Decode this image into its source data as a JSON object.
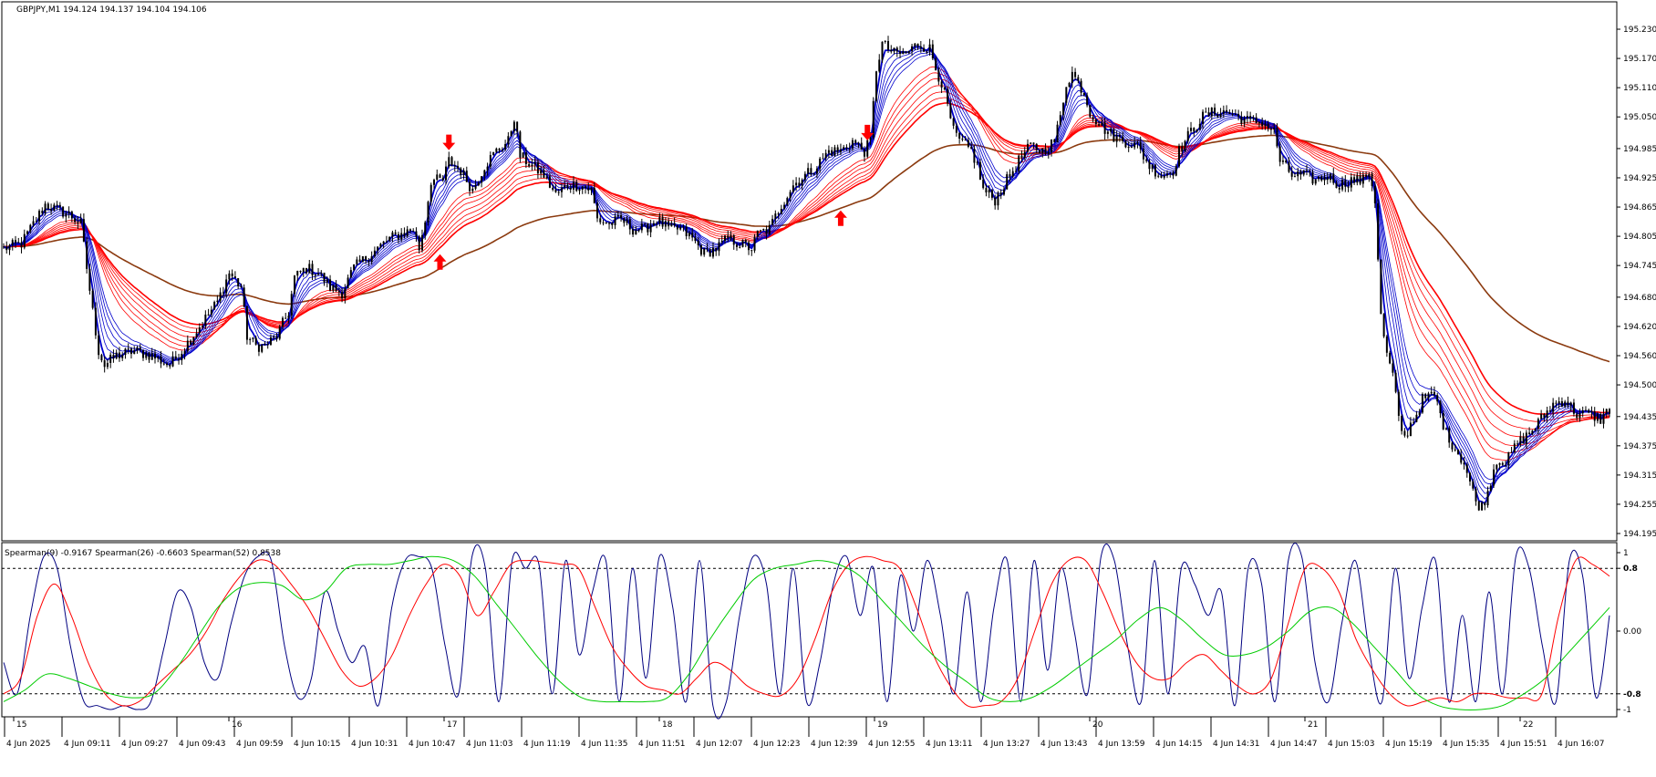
{
  "header": {
    "title": "GBPJPY,M1  194.124 194.137 194.104 194.106"
  },
  "indicator_header": {
    "text": "Spearman(9) -0.9167  Spearman(26) -0.6603  Spearman(52) 0.8538"
  },
  "colors": {
    "candle": "#000000",
    "fast_emas": "#0000cc",
    "slow_emas": "#ff0000",
    "long_ma": "#8b3a0f",
    "spearman9": "#000080",
    "spearman26": "#ff0000",
    "spearman52": "#00cc00",
    "arrow": "#ff0000"
  },
  "chart_data": [
    {
      "type": "candlestick",
      "symbol": "GBPJPY",
      "timeframe": "M1",
      "ylim": [
        194.195,
        195.26
      ],
      "y_ticks": [
        "195.230",
        "195.170",
        "195.110",
        "195.050",
        "194.985",
        "194.925",
        "194.865",
        "194.805",
        "194.745",
        "194.680",
        "194.620",
        "194.560",
        "194.500",
        "194.435",
        "194.375",
        "194.315",
        "194.255",
        "194.195"
      ],
      "x_grid_labels": [
        "15",
        "16",
        "17",
        "18",
        "19",
        "20",
        "21",
        "22"
      ],
      "x_time_labels": [
        "4 Jun 2025",
        "4 Jun 09:11",
        "4 Jun 09:27",
        "4 Jun 09:43",
        "4 Jun 09:59",
        "4 Jun 10:15",
        "4 Jun 10:31",
        "4 Jun 10:47",
        "4 Jun 11:03",
        "4 Jun 11:19",
        "4 Jun 11:35",
        "4 Jun 11:51",
        "4 Jun 12:07",
        "4 Jun 12:23",
        "4 Jun 12:39",
        "4 Jun 12:55",
        "4 Jun 13:11",
        "4 Jun 13:27",
        "4 Jun 13:43",
        "4 Jun 13:59",
        "4 Jun 14:15",
        "4 Jun 14:31",
        "4 Jun 14:47",
        "4 Jun 15:03",
        "4 Jun 15:19",
        "4 Jun 15:35",
        "4 Jun 15:51",
        "4 Jun 16:07"
      ],
      "price_path": [
        [
          0,
          194.78
        ],
        [
          6,
          194.79
        ],
        [
          10,
          194.83
        ],
        [
          14,
          194.87
        ],
        [
          18,
          194.86
        ],
        [
          22,
          194.85
        ],
        [
          26,
          194.83
        ],
        [
          28,
          194.74
        ],
        [
          30,
          194.65
        ],
        [
          32,
          194.57
        ],
        [
          34,
          194.54
        ],
        [
          38,
          194.56
        ],
        [
          44,
          194.57
        ],
        [
          50,
          194.56
        ],
        [
          56,
          194.54
        ],
        [
          60,
          194.57
        ],
        [
          66,
          194.62
        ],
        [
          72,
          194.67
        ],
        [
          76,
          194.73
        ],
        [
          80,
          194.7
        ],
        [
          82,
          194.6
        ],
        [
          85,
          194.58
        ],
        [
          88,
          194.58
        ],
        [
          92,
          194.6
        ],
        [
          96,
          194.65
        ],
        [
          98,
          194.72
        ],
        [
          102,
          194.74
        ],
        [
          106,
          194.73
        ],
        [
          110,
          194.7
        ],
        [
          114,
          194.69
        ],
        [
          118,
          194.74
        ],
        [
          122,
          194.76
        ],
        [
          126,
          194.78
        ],
        [
          130,
          194.8
        ],
        [
          134,
          194.81
        ],
        [
          138,
          194.82
        ],
        [
          140,
          194.78
        ],
        [
          142,
          194.84
        ],
        [
          144,
          194.92
        ],
        [
          148,
          194.92
        ],
        [
          150,
          194.96
        ],
        [
          154,
          194.94
        ],
        [
          158,
          194.9
        ],
        [
          162,
          194.95
        ],
        [
          166,
          194.98
        ],
        [
          170,
          195.0
        ],
        [
          172,
          195.05
        ],
        [
          174,
          194.97
        ],
        [
          178,
          194.95
        ],
        [
          182,
          194.93
        ],
        [
          186,
          194.89
        ],
        [
          190,
          194.91
        ],
        [
          194,
          194.91
        ],
        [
          198,
          194.9
        ],
        [
          200,
          194.84
        ],
        [
          204,
          194.83
        ],
        [
          208,
          194.84
        ],
        [
          212,
          194.82
        ],
        [
          216,
          194.82
        ],
        [
          220,
          194.84
        ],
        [
          224,
          194.82
        ],
        [
          228,
          194.82
        ],
        [
          232,
          194.8
        ],
        [
          236,
          194.77
        ],
        [
          240,
          194.78
        ],
        [
          244,
          194.8
        ],
        [
          248,
          194.79
        ],
        [
          252,
          194.78
        ],
        [
          254,
          194.81
        ],
        [
          258,
          194.82
        ],
        [
          262,
          194.87
        ],
        [
          266,
          194.91
        ],
        [
          270,
          194.93
        ],
        [
          274,
          194.95
        ],
        [
          278,
          194.98
        ],
        [
          282,
          194.98
        ],
        [
          286,
          195.0
        ],
        [
          290,
          194.98
        ],
        [
          292,
          195.0
        ],
        [
          294,
          195.15
        ],
        [
          296,
          195.2
        ],
        [
          300,
          195.18
        ],
        [
          304,
          195.18
        ],
        [
          308,
          195.2
        ],
        [
          312,
          195.19
        ],
        [
          314,
          195.15
        ],
        [
          316,
          195.12
        ],
        [
          320,
          195.02
        ],
        [
          322,
          195.0
        ],
        [
          326,
          194.98
        ],
        [
          328,
          194.95
        ],
        [
          330,
          194.9
        ],
        [
          334,
          194.88
        ],
        [
          338,
          194.92
        ],
        [
          342,
          194.96
        ],
        [
          346,
          194.99
        ],
        [
          350,
          194.98
        ],
        [
          354,
          195.0
        ],
        [
          356,
          195.05
        ],
        [
          358,
          195.12
        ],
        [
          360,
          195.14
        ],
        [
          364,
          195.1
        ],
        [
          366,
          195.06
        ],
        [
          370,
          195.03
        ],
        [
          374,
          195.01
        ],
        [
          378,
          195.0
        ],
        [
          382,
          194.99
        ],
        [
          386,
          194.95
        ],
        [
          390,
          194.93
        ],
        [
          394,
          194.94
        ],
        [
          396,
          194.98
        ],
        [
          400,
          195.02
        ],
        [
          404,
          195.05
        ],
        [
          408,
          195.06
        ],
        [
          412,
          195.06
        ],
        [
          416,
          195.05
        ],
        [
          420,
          195.04
        ],
        [
          424,
          195.04
        ],
        [
          428,
          195.02
        ],
        [
          430,
          194.96
        ],
        [
          434,
          194.93
        ],
        [
          438,
          194.93
        ],
        [
          442,
          194.92
        ],
        [
          446,
          194.93
        ],
        [
          450,
          194.91
        ],
        [
          454,
          194.92
        ],
        [
          458,
          194.92
        ],
        [
          460,
          194.94
        ],
        [
          462,
          194.88
        ],
        [
          464,
          194.64
        ],
        [
          466,
          194.56
        ],
        [
          468,
          194.52
        ],
        [
          470,
          194.43
        ],
        [
          472,
          194.39
        ],
        [
          474,
          194.42
        ],
        [
          476,
          194.44
        ],
        [
          478,
          194.47
        ],
        [
          482,
          194.48
        ],
        [
          484,
          194.44
        ],
        [
          486,
          194.4
        ],
        [
          490,
          194.36
        ],
        [
          492,
          194.34
        ],
        [
          494,
          194.3
        ],
        [
          496,
          194.26
        ],
        [
          498,
          194.25
        ],
        [
          500,
          194.28
        ],
        [
          502,
          194.33
        ],
        [
          504,
          194.35
        ],
        [
          506,
          194.34
        ],
        [
          510,
          194.38
        ],
        [
          514,
          194.4
        ],
        [
          518,
          194.43
        ],
        [
          522,
          194.46
        ],
        [
          526,
          194.47
        ],
        [
          530,
          194.44
        ],
        [
          534,
          194.44
        ],
        [
          538,
          194.43
        ],
        [
          541,
          194.45
        ]
      ],
      "arrows": [
        {
          "dir": "down",
          "t": 150,
          "price": 194.98
        },
        {
          "dir": "up",
          "t": 147,
          "price": 194.77
        },
        {
          "dir": "down",
          "t": 291,
          "price": 195.0
        },
        {
          "dir": "up",
          "t": 282,
          "price": 194.86
        }
      ]
    },
    {
      "type": "line",
      "name": "Spearman",
      "ylim": [
        -1,
        1
      ],
      "y_ticks": [
        "1",
        "0.8",
        "0.00",
        "-0.8",
        "-1"
      ],
      "levels": [
        0.8,
        -0.8
      ],
      "series": [
        {
          "name": "Spearman(9)",
          "key": "spearman9",
          "values": [
            -0.4,
            -0.8,
            0.2,
            0.95,
            0.8,
            -0.2,
            -0.9,
            -0.95,
            -1.0,
            -0.95,
            -1.0,
            -0.9,
            -0.2,
            0.5,
            0.3,
            -0.4,
            -0.6,
            0.1,
            0.7,
            0.95,
            0.9,
            -0.2,
            -0.85,
            -0.6,
            0.5,
            0.0,
            -0.4,
            -0.2,
            -0.95,
            0.3,
            0.9,
            0.95,
            0.8,
            -0.2,
            -0.8,
            0.95,
            0.8,
            -0.9,
            0.9,
            0.8,
            0.85,
            -0.8,
            0.9,
            -0.3,
            0.5,
            0.9,
            -0.9,
            0.8,
            -0.6,
            0.95,
            0.3,
            -0.9,
            0.9,
            -0.95,
            -0.9,
            0.2,
            0.95,
            0.6,
            -0.8,
            0.8,
            -0.9,
            -0.4,
            0.6,
            0.95,
            0.2,
            0.8,
            -0.9,
            0.7,
            0.0,
            0.9,
            0.2,
            -0.8,
            0.5,
            -0.9,
            0.3,
            0.9,
            -0.9,
            0.9,
            -0.5,
            0.8,
            0.0,
            -0.8,
            0.95,
            0.9,
            -0.2,
            -0.9,
            0.9,
            -0.8,
            0.8,
            0.6,
            0.2,
            0.5,
            -0.95,
            0.8,
            0.6,
            -0.9,
            0.9,
            0.95,
            -0.4,
            -0.9,
            0.1,
            0.9,
            -0.2,
            -0.9,
            0.8,
            -0.6,
            0.3,
            0.9,
            -0.9,
            0.2,
            -0.9,
            0.5,
            -0.8,
            0.95,
            0.8,
            -0.2,
            -0.9,
            0.9,
            0.7,
            -0.85,
            0.2
          ]
        },
        {
          "name": "Spearman(26)",
          "key": "spearman26",
          "values": [
            -0.8,
            -0.6,
            0.2,
            0.6,
            0.2,
            -0.4,
            -0.8,
            -0.95,
            -0.9,
            -0.7,
            -0.5,
            -0.3,
            0.0,
            0.4,
            0.7,
            0.9,
            0.85,
            0.6,
            0.3,
            -0.1,
            -0.5,
            -0.7,
            -0.6,
            -0.3,
            0.2,
            0.6,
            0.85,
            0.7,
            0.2,
            0.5,
            0.85,
            0.9,
            0.88,
            0.85,
            0.8,
            0.3,
            -0.2,
            -0.5,
            -0.7,
            -0.75,
            -0.8,
            -0.6,
            -0.4,
            -0.5,
            -0.7,
            -0.8,
            -0.82,
            -0.6,
            -0.1,
            0.5,
            0.85,
            0.95,
            0.9,
            0.8,
            0.3,
            -0.3,
            -0.7,
            -0.95,
            -0.95,
            -0.9,
            -0.6,
            0.0,
            0.6,
            0.9,
            0.9,
            0.5,
            0.0,
            -0.4,
            -0.6,
            -0.6,
            -0.4,
            -0.3,
            -0.5,
            -0.7,
            -0.8,
            -0.6,
            0.1,
            0.8,
            0.8,
            0.5,
            -0.1,
            -0.5,
            -0.8,
            -0.95,
            -0.9,
            -0.85,
            -0.9,
            -0.8,
            -0.8,
            -0.85,
            -0.85,
            -0.8,
            0.2,
            0.9,
            0.85,
            0.7
          ]
        },
        {
          "name": "Spearman(52)",
          "key": "spearman52",
          "values": [
            -0.9,
            -0.75,
            -0.55,
            -0.6,
            -0.7,
            -0.8,
            -0.85,
            -0.8,
            -0.5,
            -0.1,
            0.3,
            0.55,
            0.62,
            0.58,
            0.4,
            0.5,
            0.8,
            0.85,
            0.85,
            0.9,
            0.95,
            0.9,
            0.7,
            0.35,
            0.0,
            -0.35,
            -0.65,
            -0.85,
            -0.9,
            -0.9,
            -0.9,
            -0.85,
            -0.55,
            -0.1,
            0.3,
            0.65,
            0.8,
            0.85,
            0.9,
            0.85,
            0.7,
            0.4,
            0.1,
            -0.2,
            -0.45,
            -0.65,
            -0.85,
            -0.9,
            -0.85,
            -0.7,
            -0.5,
            -0.3,
            -0.1,
            0.15,
            0.3,
            0.15,
            -0.1,
            -0.3,
            -0.3,
            -0.2,
            0.0,
            0.25,
            0.3,
            0.1,
            -0.2,
            -0.5,
            -0.8,
            -0.95,
            -1.0,
            -1.0,
            -0.95,
            -0.8,
            -0.6,
            -0.3,
            0.0,
            0.3
          ]
        }
      ]
    }
  ]
}
